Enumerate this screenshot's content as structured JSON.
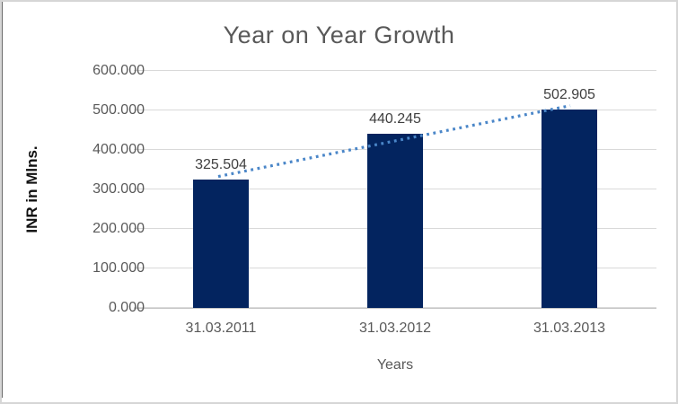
{
  "chart_data": {
    "type": "bar",
    "title": "Year on Year Growth",
    "categories": [
      "31.03.2011",
      "31.03.2012",
      "31.03.2013"
    ],
    "values": [
      325.504,
      440.245,
      502.905
    ],
    "data_labels": [
      "325.504",
      "440.245",
      "502.905"
    ],
    "xlabel": "Years",
    "ylabel": "INR in Mlns.",
    "ylim": [
      0,
      600
    ],
    "ytick_step": 100,
    "ytick_labels": [
      "0.000",
      "100.000",
      "200.000",
      "300.000",
      "400.000",
      "500.000",
      "600.000"
    ],
    "grid": true,
    "legend": "none",
    "trendline": {
      "type": "linear",
      "style": "dotted",
      "color": "#4a86c8"
    },
    "colors": {
      "bar": "#03245f",
      "gridline": "#d9d9d9",
      "axis_line": "#c6c6c6",
      "title_text": "#595959",
      "tick_text": "#595959",
      "data_label_text": "#3f3f3f",
      "ylabel_text": "#111111",
      "frame_border": "#d6d6d6"
    }
  }
}
